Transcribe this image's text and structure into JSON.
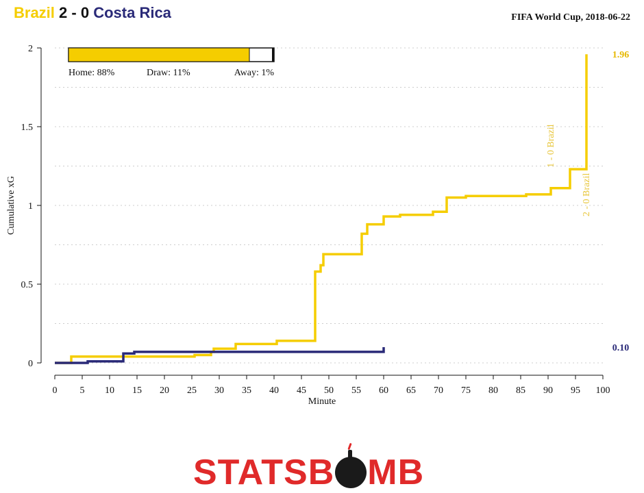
{
  "header": {
    "home_team": "Brazil",
    "score": "2 - 0",
    "away_team": "Costa Rica",
    "competition": "FIFA World Cup, 2018-06-22"
  },
  "win_prob": {
    "home_label": "Home: 88%",
    "draw_label": "Draw: 11%",
    "away_label": "Away: 1%",
    "home": 0.88,
    "draw": 0.11,
    "away": 0.01
  },
  "colors": {
    "home": "#f5cd00",
    "away": "#2a2a78",
    "goal_text": "#e8c63a",
    "grid": "#cccccc"
  },
  "chart_data": {
    "type": "line",
    "xlabel": "Minute",
    "ylabel": "Cumulative xG",
    "xlim": [
      0,
      100
    ],
    "ylim": [
      0,
      2
    ],
    "x_ticks": [
      "0",
      "5",
      "10",
      "15",
      "20",
      "25",
      "30",
      "35",
      "40",
      "45",
      "50",
      "55",
      "60",
      "65",
      "70",
      "75",
      "80",
      "85",
      "90",
      "95",
      "100"
    ],
    "y_ticks": [
      "0",
      "0.5",
      "1",
      "1.5",
      "2"
    ],
    "grid": "horizontal dotted",
    "series": [
      {
        "name": "Brazil",
        "step": true,
        "x": [
          0,
          3,
          13,
          22.5,
          25.5,
          28.5,
          29,
          33,
          40.5,
          47.5,
          48.5,
          49,
          56,
          57,
          60,
          63,
          69,
          71.5,
          75,
          86,
          90.5,
          94,
          97
        ],
        "y": [
          0,
          0.04,
          0.04,
          0.04,
          0.05,
          0.07,
          0.09,
          0.12,
          0.14,
          0.58,
          0.62,
          0.69,
          0.82,
          0.88,
          0.93,
          0.94,
          0.96,
          1.05,
          1.06,
          1.07,
          1.11,
          1.23,
          1.29
        ],
        "end": [
          97,
          1.96
        ],
        "end_label": "1.96"
      },
      {
        "name": "Costa Rica",
        "step": true,
        "x": [
          0,
          6,
          12.5,
          14.5,
          60
        ],
        "y": [
          0,
          0.01,
          0.06,
          0.07,
          0.07
        ],
        "end": [
          60,
          0.1
        ],
        "end_label": "0.10"
      }
    ],
    "annotations": [
      {
        "text": "1 - 0 Brazil",
        "x": 90.5,
        "y": 1.24
      },
      {
        "text": "2 - 0 Brazil",
        "x": 97,
        "y": 0.93
      }
    ]
  },
  "logo": {
    "left": "STATSB",
    "right": "MB"
  }
}
